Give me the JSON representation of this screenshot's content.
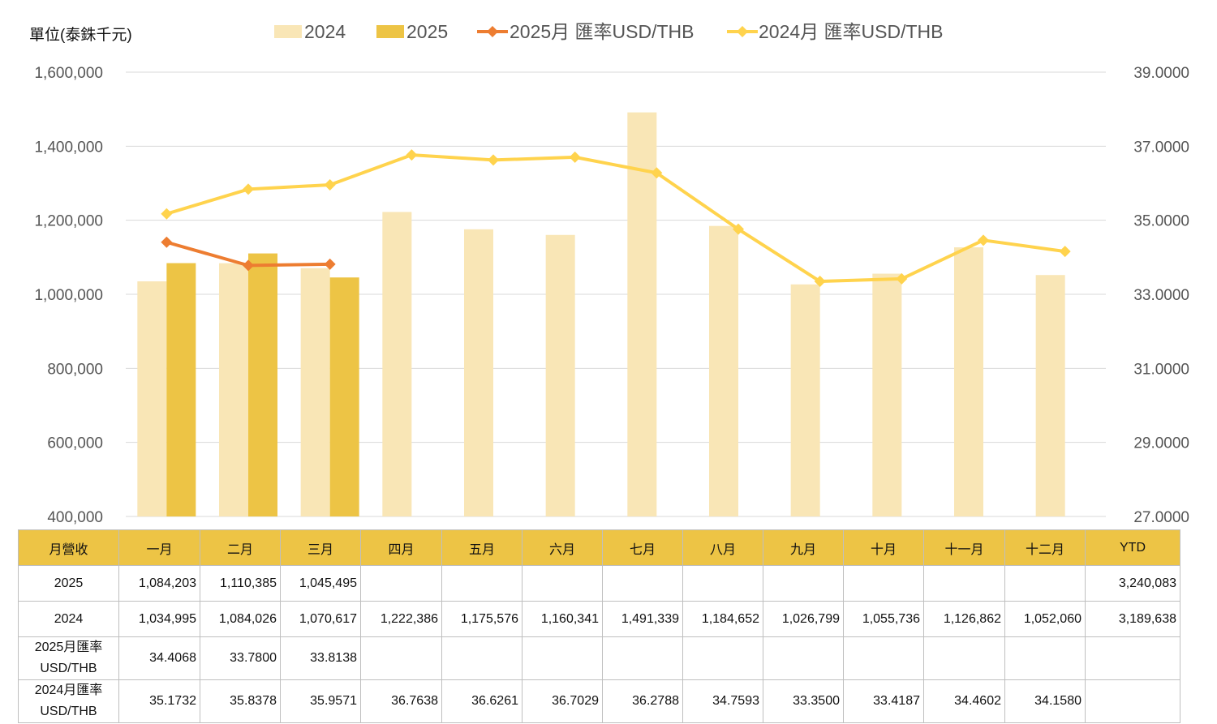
{
  "unit_label": "單位(泰銖千元)",
  "colors": {
    "bar_2024": "#F9E6B6",
    "bar_2025": "#EDC445",
    "line_2025": "#ED7D31",
    "line_2024": "#FFD34D",
    "header_fill": "#EDC445",
    "grid": "#d9d9d9"
  },
  "chart_data": {
    "type": "bar",
    "categories": [
      "一月",
      "二月",
      "三月",
      "四月",
      "五月",
      "六月",
      "七月",
      "八月",
      "九月",
      "十月",
      "十一月",
      "十二月"
    ],
    "series": [
      {
        "name": "2024",
        "type": "bar",
        "axis": "left",
        "values": [
          1034995,
          1084026,
          1070617,
          1222386,
          1175576,
          1160341,
          1491339,
          1184652,
          1026799,
          1055736,
          1126862,
          1052060
        ]
      },
      {
        "name": "2025",
        "type": "bar",
        "axis": "left",
        "values": [
          1084203,
          1110385,
          1045495,
          null,
          null,
          null,
          null,
          null,
          null,
          null,
          null,
          null
        ]
      },
      {
        "name": "2025月 匯率USD/THB",
        "type": "line",
        "axis": "right",
        "values": [
          34.4068,
          33.78,
          33.8138,
          null,
          null,
          null,
          null,
          null,
          null,
          null,
          null,
          null
        ]
      },
      {
        "name": "2024月 匯率USD/THB",
        "type": "line",
        "axis": "right",
        "values": [
          35.1732,
          35.8378,
          35.9571,
          36.7638,
          36.6261,
          36.7029,
          36.2788,
          34.7593,
          33.35,
          33.4187,
          34.4602,
          34.158
        ]
      }
    ],
    "y_left": {
      "min": 400000,
      "max": 1600000,
      "ticks": [
        "400,000",
        "600,000",
        "800,000",
        "1,000,000",
        "1,200,000",
        "1,400,000",
        "1,600,000"
      ]
    },
    "y_right": {
      "min": 27,
      "max": 39,
      "ticks": [
        "27.0000",
        "29.0000",
        "31.0000",
        "33.0000",
        "35.0000",
        "37.0000",
        "39.0000"
      ]
    },
    "grid": true,
    "legend_position": "top"
  },
  "table": {
    "headers": [
      "月營收",
      "一月",
      "二月",
      "三月",
      "四月",
      "五月",
      "六月",
      "七月",
      "八月",
      "九月",
      "十月",
      "十一月",
      "十二月",
      "YTD"
    ],
    "rows": [
      {
        "label": "2025",
        "cells": [
          "1,084,203",
          "1,110,385",
          "1,045,495",
          "",
          "",
          "",
          "",
          "",
          "",
          "",
          "",
          "",
          "3,240,083"
        ]
      },
      {
        "label": "2024",
        "cells": [
          "1,034,995",
          "1,084,026",
          "1,070,617",
          "1,222,386",
          "1,175,576",
          "1,160,341",
          "1,491,339",
          "1,184,652",
          "1,026,799",
          "1,055,736",
          "1,126,862",
          "1,052,060",
          "3,189,638"
        ]
      },
      {
        "label_line1": "2025月匯率",
        "label_line2": "USD/THB",
        "cells": [
          "34.4068",
          "33.7800",
          "33.8138",
          "",
          "",
          "",
          "",
          "",
          "",
          "",
          "",
          "",
          ""
        ]
      },
      {
        "label_line1": "2024月匯率",
        "label_line2": "USD/THB",
        "cells": [
          "35.1732",
          "35.8378",
          "35.9571",
          "36.7638",
          "36.6261",
          "36.7029",
          "36.2788",
          "34.7593",
          "33.3500",
          "33.4187",
          "34.4602",
          "34.1580",
          ""
        ]
      }
    ]
  }
}
